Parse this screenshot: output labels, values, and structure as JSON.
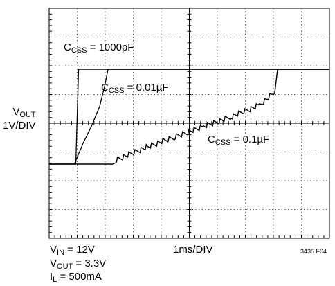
{
  "chart_data": {
    "type": "line",
    "ylabel_main": "V",
    "ylabel_sub": "OUT",
    "ylabel_scale": "1V/DIV",
    "xlabel": "1ms/DIV",
    "figure_id": "3435 F04",
    "divisions": {
      "x": 10,
      "y": 8
    },
    "x_unit": "ms",
    "y_unit": "V",
    "conditions": [
      {
        "main": "V",
        "sub": "IN",
        "rest": " = 12V"
      },
      {
        "main": "V",
        "sub": "OUT",
        "rest": " = 3.3V"
      },
      {
        "main": "I",
        "sub": "L",
        "rest": " = 500mA"
      }
    ],
    "series": [
      {
        "name_main": "C",
        "name_sub": "CSS",
        "name_rest": " = 1000pF",
        "x": [
          0,
          0.95,
          1.05,
          10.0
        ],
        "y": [
          0,
          0,
          3.3,
          3.3
        ]
      },
      {
        "name_main": "C",
        "name_sub": "CSS",
        "name_rest": " = 0.01µF",
        "x": [
          0,
          0.9,
          1.2,
          1.5,
          1.8,
          2.0,
          2.1,
          10.0
        ],
        "y": [
          0,
          0,
          0.7,
          1.3,
          2.0,
          2.8,
          3.3,
          3.3
        ]
      },
      {
        "name_main": "C",
        "name_sub": "CSS",
        "name_rest": " = 0.1µF",
        "x": [
          0,
          2.3,
          2.4,
          3.5,
          4.5,
          5.5,
          6.5,
          7.5,
          8.05,
          8.15,
          10.0
        ],
        "y": [
          0,
          0,
          0.15,
          0.6,
          0.95,
          1.3,
          1.65,
          2.05,
          2.5,
          3.3,
          3.3
        ]
      }
    ]
  }
}
